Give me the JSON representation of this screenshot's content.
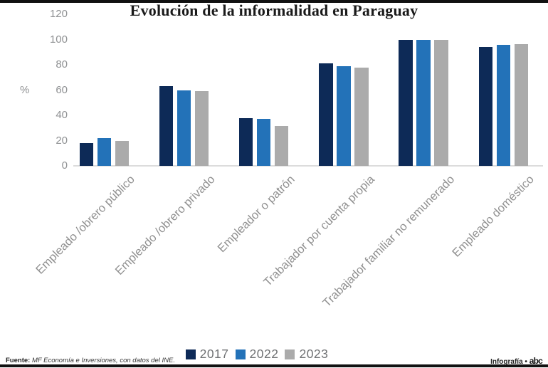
{
  "title": "Evolución de la informalidad en Paraguay",
  "chart_data": {
    "type": "bar",
    "title": "Evolución de la informalidad en Paraguay",
    "categories": [
      "Empleado /obrero público",
      "Empleado /obrero privado",
      "Empleador o patrón",
      "Trabajador por cuenta propia",
      "Trabajador familiar no remunerado",
      "Empleado doméstico"
    ],
    "series": [
      {
        "name": "2017",
        "color": "#0d2a57",
        "values": [
          18,
          63,
          38,
          81,
          100,
          94
        ]
      },
      {
        "name": "2022",
        "color": "#2372b8",
        "values": [
          22,
          60,
          37,
          79,
          100,
          96
        ]
      },
      {
        "name": "2023",
        "color": "#ababab",
        "values": [
          19.5,
          59,
          31.5,
          78,
          100,
          96.5
        ]
      }
    ],
    "ylabel": "%",
    "yticks": [
      0,
      20,
      40,
      60,
      80,
      100,
      120
    ],
    "ylim": [
      0,
      120
    ],
    "grid": false,
    "legend_position": "bottom-center",
    "x_tick_rotation_deg": 45
  },
  "legend": {
    "items": [
      {
        "label": "2017",
        "color": "#0d2a57"
      },
      {
        "label": "2022",
        "color": "#2372b8"
      },
      {
        "label": "2023",
        "color": "#ababab"
      }
    ]
  },
  "footer": {
    "source_label": "Fuente:",
    "source_text": " MF Economía e Inversiones, con datos del INE.",
    "credit_text": "Infografía • ",
    "credit_logo": "abc"
  },
  "colors": {
    "series_2017": "#0d2a57",
    "series_2022": "#2372b8",
    "series_2023": "#ababab",
    "axis_text": "#8f9193",
    "category_text": "#909090",
    "baseline": "#dcdcdc",
    "border_bars": "#111111",
    "title_text": "#1a1a1a"
  }
}
